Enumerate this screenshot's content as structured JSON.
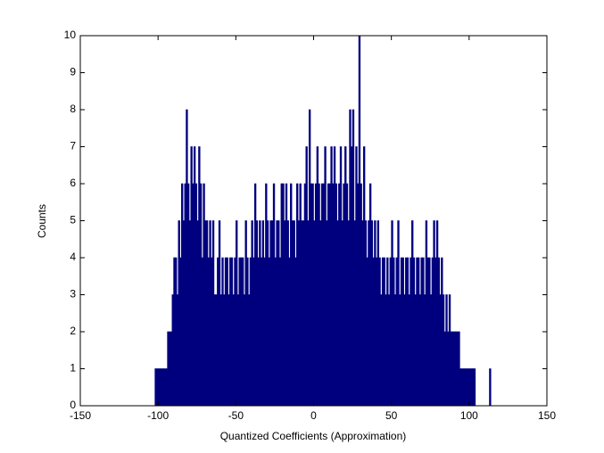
{
  "chart_data": {
    "type": "histogram",
    "xlabel": "Quantized Coefficients (Approximation)",
    "ylabel": "Counts",
    "color": "#00007f",
    "xlim": [
      -150,
      150
    ],
    "xticks": [
      -150,
      -100,
      -50,
      0,
      50,
      100,
      150
    ],
    "ylim": [
      0,
      10
    ],
    "yticks": [
      0,
      1,
      2,
      3,
      4,
      5,
      6,
      7,
      8,
      9,
      10
    ],
    "grid": false,
    "bins": [
      -102,
      -101,
      -100,
      -99,
      -98,
      -97,
      -96,
      -95,
      -94,
      -93,
      -92,
      -91,
      -90,
      -89,
      -88,
      -87,
      -86,
      -85,
      -84,
      -83,
      -82,
      -81,
      -80,
      -79,
      -78,
      -77,
      -76,
      -75,
      -74,
      -73,
      -72,
      -71,
      -70,
      -69,
      -68,
      -67,
      -66,
      -65,
      -64,
      -63,
      -62,
      -61,
      -60,
      -59,
      -58,
      -57,
      -56,
      -55,
      -54,
      -53,
      -52,
      -51,
      -50,
      -49,
      -48,
      -47,
      -46,
      -45,
      -44,
      -43,
      -42,
      -41,
      -40,
      -39,
      -38,
      -37,
      -36,
      -35,
      -34,
      -33,
      -32,
      -31,
      -30,
      -29,
      -28,
      -27,
      -26,
      -25,
      -24,
      -23,
      -22,
      -21,
      -20,
      -19,
      -18,
      -17,
      -16,
      -15,
      -14,
      -13,
      -12,
      -11,
      -10,
      -9,
      -8,
      -7,
      -6,
      -5,
      -4,
      -3,
      -2,
      -1,
      0,
      1,
      2,
      3,
      4,
      5,
      6,
      7,
      8,
      9,
      10,
      11,
      12,
      13,
      14,
      15,
      16,
      17,
      18,
      19,
      20,
      21,
      22,
      23,
      24,
      25,
      26,
      27,
      28,
      29,
      30,
      31,
      32,
      33,
      34,
      35,
      36,
      37,
      38,
      39,
      40,
      41,
      42,
      43,
      44,
      45,
      46,
      47,
      48,
      49,
      50,
      51,
      52,
      53,
      54,
      55,
      56,
      57,
      58,
      59,
      60,
      61,
      62,
      63,
      64,
      65,
      66,
      67,
      68,
      69,
      70,
      71,
      72,
      73,
      74,
      75,
      76,
      77,
      78,
      79,
      80,
      81,
      82,
      83,
      84,
      85,
      86,
      87,
      88,
      89,
      90,
      91,
      92,
      93,
      94,
      95,
      96,
      97,
      98,
      99,
      100,
      101,
      102,
      103,
      104,
      105,
      106,
      107,
      108,
      109,
      110,
      111,
      112,
      113,
      114
    ],
    "counts": [
      1,
      1,
      1,
      1,
      1,
      1,
      1,
      1,
      2,
      2,
      2,
      3,
      4,
      4,
      3,
      5,
      4,
      6,
      5,
      6,
      8,
      6,
      5,
      7,
      6,
      7,
      6,
      5,
      7,
      6,
      4,
      6,
      5,
      5,
      4,
      5,
      4,
      5,
      3,
      3,
      4,
      5,
      3,
      4,
      3,
      4,
      4,
      3,
      4,
      4,
      3,
      4,
      5,
      3,
      4,
      4,
      4,
      3,
      5,
      4,
      3,
      4,
      5,
      4,
      6,
      5,
      4,
      5,
      4,
      5,
      4,
      6,
      5,
      4,
      5,
      5,
      6,
      4,
      5,
      5,
      4,
      6,
      6,
      5,
      6,
      5,
      4,
      6,
      5,
      5,
      4,
      6,
      5,
      6,
      5,
      5,
      6,
      7,
      5,
      8,
      6,
      6,
      5,
      6,
      7,
      6,
      5,
      6,
      6,
      7,
      5,
      6,
      6,
      7,
      6,
      7,
      6,
      5,
      6,
      7,
      5,
      6,
      7,
      6,
      5,
      8,
      7,
      8,
      5,
      7,
      6,
      10,
      6,
      5,
      7,
      5,
      4,
      5,
      6,
      5,
      4,
      5,
      4,
      5,
      4,
      3,
      4,
      4,
      3,
      4,
      3,
      4,
      5,
      4,
      3,
      4,
      5,
      3,
      4,
      4,
      3,
      4,
      4,
      3,
      4,
      5,
      4,
      3,
      4,
      4,
      3,
      4,
      4,
      3,
      5,
      4,
      4,
      3,
      4,
      5,
      4,
      5,
      4,
      3,
      4,
      3,
      2,
      3,
      2,
      3,
      2,
      2,
      2,
      2,
      2,
      2,
      1,
      1,
      1,
      1,
      1,
      1,
      1,
      1,
      1,
      1,
      0,
      0,
      0,
      0,
      0,
      0,
      0,
      0,
      0,
      1
    ]
  }
}
